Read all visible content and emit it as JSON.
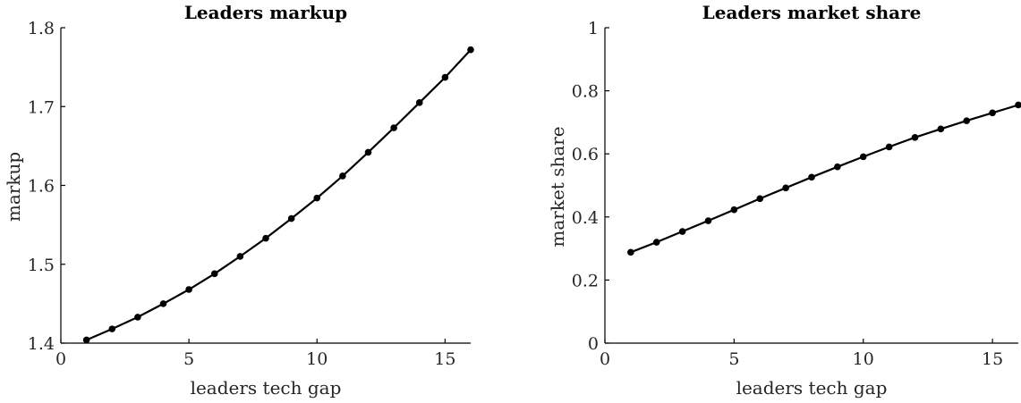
{
  "chart_data": [
    {
      "type": "line",
      "title": "Leaders markup",
      "xlabel": "leaders tech gap",
      "ylabel": "markup",
      "xlim": [
        0,
        16
      ],
      "ylim": [
        1.4,
        1.8
      ],
      "xticks": [
        0,
        5,
        10,
        15
      ],
      "xtick_labels": [
        "0",
        "5",
        "10",
        "15"
      ],
      "yticks": [
        1.4,
        1.5,
        1.6,
        1.7,
        1.8
      ],
      "ytick_labels": [
        "1.4",
        "1.5",
        "1.6",
        "1.7",
        "1.8"
      ],
      "grid": false,
      "line_color": "#000000",
      "series": [
        {
          "x": [
            1,
            2,
            3,
            4,
            5,
            6,
            7,
            8,
            9,
            10,
            11,
            12,
            13,
            14,
            15,
            16
          ],
          "values": [
            1.404,
            1.418,
            1.433,
            1.45,
            1.468,
            1.488,
            1.51,
            1.533,
            1.558,
            1.584,
            1.612,
            1.642,
            1.673,
            1.705,
            1.737,
            1.772
          ]
        }
      ]
    },
    {
      "type": "line",
      "title": "Leaders market share",
      "xlabel": "leaders tech gap",
      "ylabel": "market share",
      "xlim": [
        0,
        16
      ],
      "ylim": [
        0,
        1
      ],
      "xticks": [
        0,
        5,
        10,
        15
      ],
      "xtick_labels": [
        "0",
        "5",
        "10",
        "15"
      ],
      "yticks": [
        0,
        0.2,
        0.4,
        0.6,
        0.8,
        1
      ],
      "ytick_labels": [
        "0",
        "0.2",
        "0.4",
        "0.6",
        "0.8",
        "1"
      ],
      "grid": false,
      "line_color": "#000000",
      "series": [
        {
          "x": [
            1,
            2,
            3,
            4,
            5,
            6,
            7,
            8,
            9,
            10,
            11,
            12,
            13,
            14,
            15,
            16
          ],
          "values": [
            0.288,
            0.32,
            0.354,
            0.388,
            0.423,
            0.458,
            0.492,
            0.526,
            0.559,
            0.591,
            0.622,
            0.652,
            0.679,
            0.705,
            0.73,
            0.755
          ]
        }
      ]
    }
  ]
}
